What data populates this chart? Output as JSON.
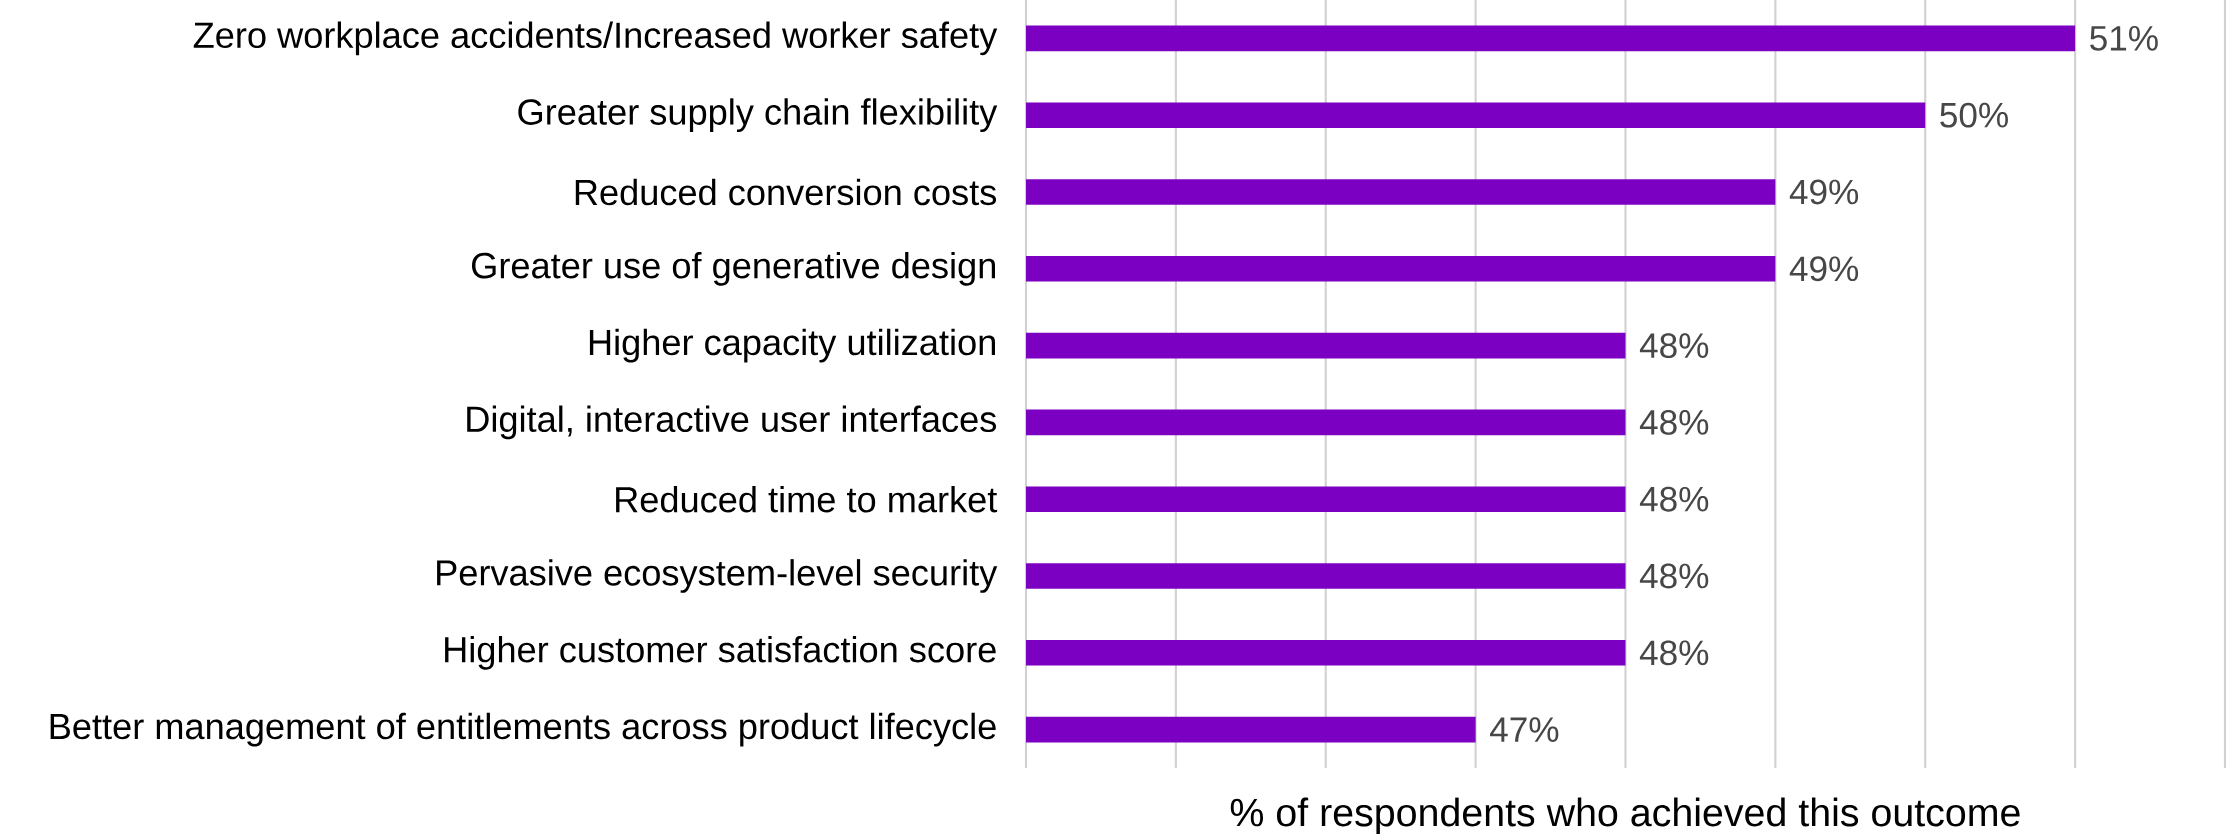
{
  "chart_data": {
    "type": "bar",
    "orientation": "horizontal",
    "categories": [
      "Zero workplace accidents/Increased worker safety",
      "Greater supply chain flexibility",
      "Reduced conversion costs",
      "Greater use of generative design",
      "Higher capacity utilization",
      "Digital, interactive user interfaces",
      "Reduced time to market",
      "Pervasive ecosystem-level security",
      "Higher customer satisfaction score",
      "Better management of entitlements across product lifecycle"
    ],
    "values": [
      51,
      50,
      49,
      49,
      48,
      48,
      48,
      48,
      48,
      47
    ],
    "value_labels": [
      "51%",
      "50%",
      "49%",
      "49%",
      "48%",
      "48%",
      "48%",
      "48%",
      "48%",
      "47%"
    ],
    "color": "#7b00c1",
    "xlabel": "% of respondents who achieved this outcome",
    "xlim": [
      44,
      52
    ],
    "xticks": [
      {
        "value": 44,
        "label": null
      },
      {
        "value": 45,
        "label": null
      },
      {
        "value": 46,
        "label": null
      },
      {
        "value": 47,
        "label": null
      },
      {
        "value": 48,
        "label": null
      },
      {
        "value": 49,
        "label": null
      },
      {
        "value": 50,
        "label": null
      },
      {
        "value": 51,
        "label": null
      },
      {
        "value": 52,
        "label": null
      }
    ],
    "grid": "x",
    "tick_labels": "y"
  }
}
